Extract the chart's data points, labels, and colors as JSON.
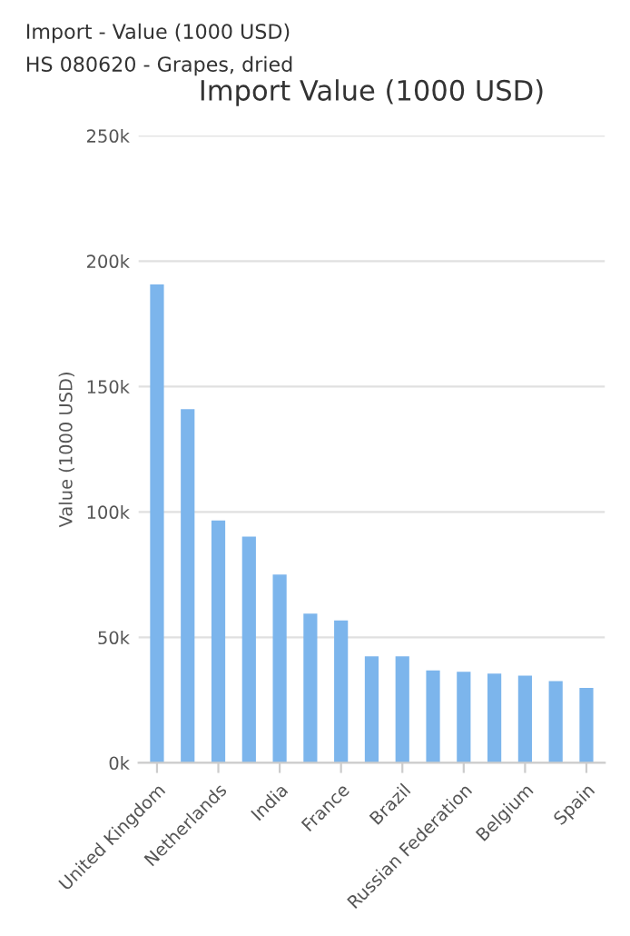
{
  "chart_data": {
    "type": "bar",
    "title": "Import Value (1000 USD)",
    "ylabel": "Value (1000 USD)",
    "annotations": [
      "Import - Value (1000 USD)",
      "HS 080620 - Grapes, dried"
    ],
    "categories": [
      "United Kingdom",
      null,
      "Netherlands",
      null,
      "India",
      null,
      "France",
      null,
      "Brazil",
      null,
      "Russian Federation",
      null,
      "Belgium",
      null,
      "Spain"
    ],
    "values": [
      190.7,
      141,
      96.6,
      90.2,
      75.1,
      59.5,
      56.8,
      42.5,
      42.5,
      36.8,
      36.3,
      35.6,
      34.8,
      32.6,
      29.9
    ],
    "color": "#7cb5ec",
    "ylim": [
      0,
      250
    ],
    "yticks": [
      {
        "value": 0,
        "label": "0k"
      },
      {
        "value": 50,
        "label": "50k"
      },
      {
        "value": 100,
        "label": "100k"
      },
      {
        "value": 150,
        "label": "150k"
      },
      {
        "value": 200,
        "label": "200k"
      },
      {
        "value": 250,
        "label": "250k"
      }
    ],
    "grid": "y",
    "legend": false
  }
}
